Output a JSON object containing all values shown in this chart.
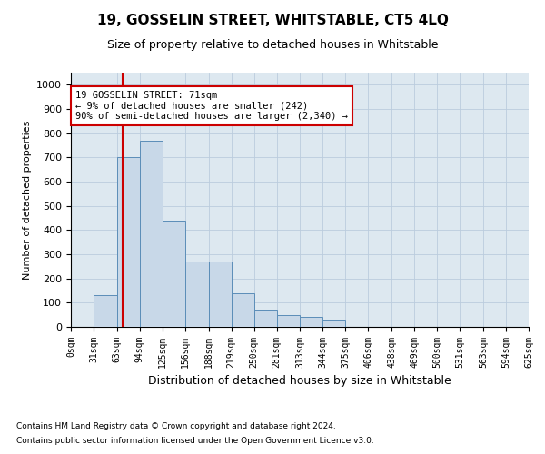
{
  "title": "19, GOSSELIN STREET, WHITSTABLE, CT5 4LQ",
  "subtitle": "Size of property relative to detached houses in Whitstable",
  "xlabel": "Distribution of detached houses by size in Whitstable",
  "ylabel": "Number of detached properties",
  "bin_edges": [
    0,
    31,
    63,
    94,
    125,
    156,
    188,
    219,
    250,
    281,
    313,
    344,
    375,
    406,
    438,
    469,
    500,
    531,
    563,
    594,
    625
  ],
  "bin_labels": [
    "0sqm",
    "31sqm",
    "63sqm",
    "94sqm",
    "125sqm",
    "156sqm",
    "188sqm",
    "219sqm",
    "250sqm",
    "281sqm",
    "313sqm",
    "344sqm",
    "375sqm",
    "406sqm",
    "438sqm",
    "469sqm",
    "500sqm",
    "531sqm",
    "563sqm",
    "594sqm",
    "625sqm"
  ],
  "bar_heights": [
    0,
    130,
    700,
    770,
    440,
    270,
    270,
    140,
    70,
    50,
    40,
    30,
    0,
    0,
    0,
    0,
    0,
    0,
    0,
    0
  ],
  "bar_color": "#c8d8e8",
  "bar_edge_color": "#5b8db8",
  "grid_color": "#bbccdd",
  "background_color": "#dde8f0",
  "property_line_x": 71,
  "property_line_color": "#cc0000",
  "annotation_text": "19 GOSSELIN STREET: 71sqm\n← 9% of detached houses are smaller (242)\n90% of semi-detached houses are larger (2,340) →",
  "annotation_box_color": "#ffffff",
  "annotation_box_edge": "#cc0000",
  "ylim": [
    0,
    1050
  ],
  "yticks": [
    0,
    100,
    200,
    300,
    400,
    500,
    600,
    700,
    800,
    900,
    1000
  ],
  "footer_line1": "Contains HM Land Registry data © Crown copyright and database right 2024.",
  "footer_line2": "Contains public sector information licensed under the Open Government Licence v3.0."
}
